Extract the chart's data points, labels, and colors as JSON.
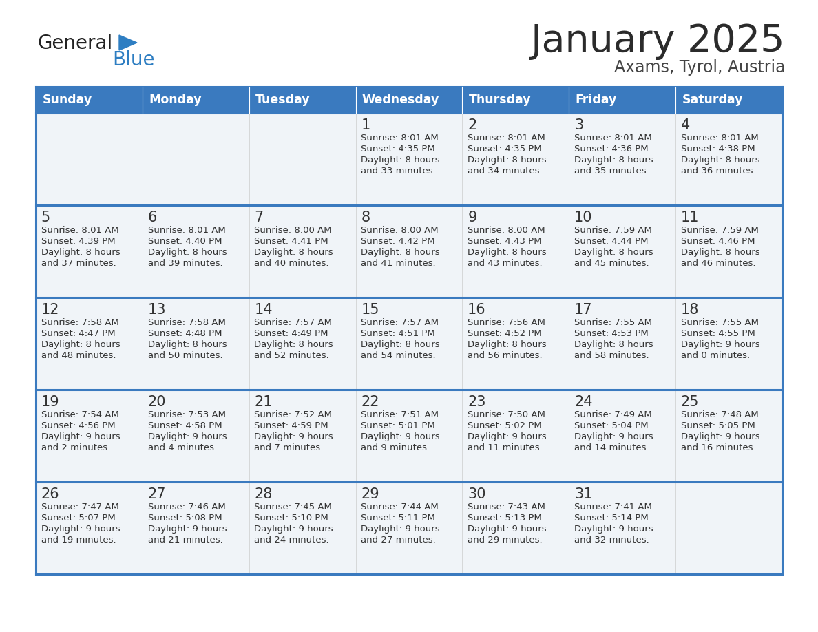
{
  "title": "January 2025",
  "subtitle": "Axams, Tyrol, Austria",
  "header_color": "#3a7abf",
  "header_text_color": "#ffffff",
  "cell_bg_color": "#f0f4f8",
  "text_color": "#333333",
  "border_color": "#3a7abf",
  "days_of_week": [
    "Sunday",
    "Monday",
    "Tuesday",
    "Wednesday",
    "Thursday",
    "Friday",
    "Saturday"
  ],
  "calendar_data": [
    [
      {
        "day": "",
        "sunrise": "",
        "sunset": "",
        "daylight": ""
      },
      {
        "day": "",
        "sunrise": "",
        "sunset": "",
        "daylight": ""
      },
      {
        "day": "",
        "sunrise": "",
        "sunset": "",
        "daylight": ""
      },
      {
        "day": "1",
        "sunrise": "8:01 AM",
        "sunset": "4:35 PM",
        "daylight": "8 hours and 33 minutes."
      },
      {
        "day": "2",
        "sunrise": "8:01 AM",
        "sunset": "4:35 PM",
        "daylight": "8 hours and 34 minutes."
      },
      {
        "day": "3",
        "sunrise": "8:01 AM",
        "sunset": "4:36 PM",
        "daylight": "8 hours and 35 minutes."
      },
      {
        "day": "4",
        "sunrise": "8:01 AM",
        "sunset": "4:38 PM",
        "daylight": "8 hours and 36 minutes."
      }
    ],
    [
      {
        "day": "5",
        "sunrise": "8:01 AM",
        "sunset": "4:39 PM",
        "daylight": "8 hours and 37 minutes."
      },
      {
        "day": "6",
        "sunrise": "8:01 AM",
        "sunset": "4:40 PM",
        "daylight": "8 hours and 39 minutes."
      },
      {
        "day": "7",
        "sunrise": "8:00 AM",
        "sunset": "4:41 PM",
        "daylight": "8 hours and 40 minutes."
      },
      {
        "day": "8",
        "sunrise": "8:00 AM",
        "sunset": "4:42 PM",
        "daylight": "8 hours and 41 minutes."
      },
      {
        "day": "9",
        "sunrise": "8:00 AM",
        "sunset": "4:43 PM",
        "daylight": "8 hours and 43 minutes."
      },
      {
        "day": "10",
        "sunrise": "7:59 AM",
        "sunset": "4:44 PM",
        "daylight": "8 hours and 45 minutes."
      },
      {
        "day": "11",
        "sunrise": "7:59 AM",
        "sunset": "4:46 PM",
        "daylight": "8 hours and 46 minutes."
      }
    ],
    [
      {
        "day": "12",
        "sunrise": "7:58 AM",
        "sunset": "4:47 PM",
        "daylight": "8 hours and 48 minutes."
      },
      {
        "day": "13",
        "sunrise": "7:58 AM",
        "sunset": "4:48 PM",
        "daylight": "8 hours and 50 minutes."
      },
      {
        "day": "14",
        "sunrise": "7:57 AM",
        "sunset": "4:49 PM",
        "daylight": "8 hours and 52 minutes."
      },
      {
        "day": "15",
        "sunrise": "7:57 AM",
        "sunset": "4:51 PM",
        "daylight": "8 hours and 54 minutes."
      },
      {
        "day": "16",
        "sunrise": "7:56 AM",
        "sunset": "4:52 PM",
        "daylight": "8 hours and 56 minutes."
      },
      {
        "day": "17",
        "sunrise": "7:55 AM",
        "sunset": "4:53 PM",
        "daylight": "8 hours and 58 minutes."
      },
      {
        "day": "18",
        "sunrise": "7:55 AM",
        "sunset": "4:55 PM",
        "daylight": "9 hours and 0 minutes."
      }
    ],
    [
      {
        "day": "19",
        "sunrise": "7:54 AM",
        "sunset": "4:56 PM",
        "daylight": "9 hours and 2 minutes."
      },
      {
        "day": "20",
        "sunrise": "7:53 AM",
        "sunset": "4:58 PM",
        "daylight": "9 hours and 4 minutes."
      },
      {
        "day": "21",
        "sunrise": "7:52 AM",
        "sunset": "4:59 PM",
        "daylight": "9 hours and 7 minutes."
      },
      {
        "day": "22",
        "sunrise": "7:51 AM",
        "sunset": "5:01 PM",
        "daylight": "9 hours and 9 minutes."
      },
      {
        "day": "23",
        "sunrise": "7:50 AM",
        "sunset": "5:02 PM",
        "daylight": "9 hours and 11 minutes."
      },
      {
        "day": "24",
        "sunrise": "7:49 AM",
        "sunset": "5:04 PM",
        "daylight": "9 hours and 14 minutes."
      },
      {
        "day": "25",
        "sunrise": "7:48 AM",
        "sunset": "5:05 PM",
        "daylight": "9 hours and 16 minutes."
      }
    ],
    [
      {
        "day": "26",
        "sunrise": "7:47 AM",
        "sunset": "5:07 PM",
        "daylight": "9 hours and 19 minutes."
      },
      {
        "day": "27",
        "sunrise": "7:46 AM",
        "sunset": "5:08 PM",
        "daylight": "9 hours and 21 minutes."
      },
      {
        "day": "28",
        "sunrise": "7:45 AM",
        "sunset": "5:10 PM",
        "daylight": "9 hours and 24 minutes."
      },
      {
        "day": "29",
        "sunrise": "7:44 AM",
        "sunset": "5:11 PM",
        "daylight": "9 hours and 27 minutes."
      },
      {
        "day": "30",
        "sunrise": "7:43 AM",
        "sunset": "5:13 PM",
        "daylight": "9 hours and 29 minutes."
      },
      {
        "day": "31",
        "sunrise": "7:41 AM",
        "sunset": "5:14 PM",
        "daylight": "9 hours and 32 minutes."
      },
      {
        "day": "",
        "sunrise": "",
        "sunset": "",
        "daylight": ""
      }
    ]
  ],
  "logo_general_color": "#222222",
  "logo_blue_color": "#2e7ec2",
  "logo_triangle_color": "#2e7ec2"
}
